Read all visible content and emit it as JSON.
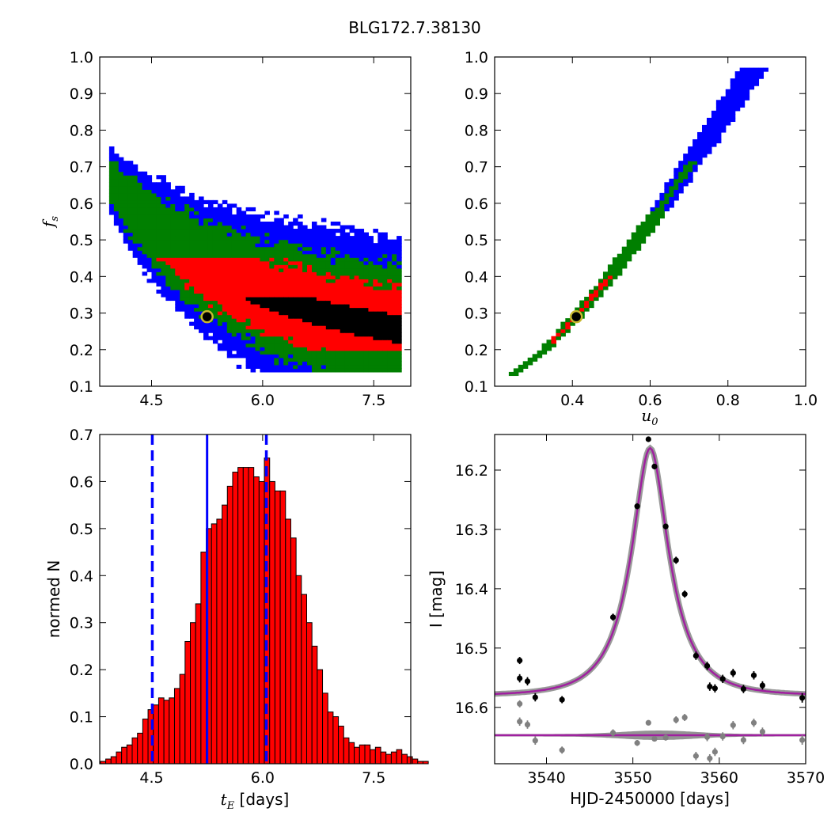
{
  "figure": {
    "title": "BLG172.7.38130"
  },
  "chart_data": [
    {
      "panel": "fs-vs-tE",
      "type": "heatmap",
      "xlabel": "",
      "ylabel_symbol": "f",
      "ylabel_sub": "s",
      "xlim": [
        3.8,
        8.0
      ],
      "ylim": [
        0.1,
        1.0
      ],
      "xticks": [
        4.5,
        6.0,
        7.5
      ],
      "yticks": [
        0.1,
        0.2,
        0.3,
        0.4,
        0.5,
        0.6,
        0.7,
        0.8,
        0.9,
        1.0
      ],
      "colors": {
        "blue": "#0000ff",
        "green": "#007f00",
        "red": "#ff0000",
        "black": "#000000"
      },
      "best_fit": {
        "x": 5.25,
        "y": 0.29
      }
    },
    {
      "panel": "fs-vs-u0",
      "type": "heatmap",
      "xlabel_symbol": "u",
      "xlabel_sub": "0",
      "xlim": [
        0.2,
        1.0
      ],
      "ylim": [
        0.1,
        1.0
      ],
      "xticks": [
        0.4,
        0.6,
        0.8,
        1.0
      ],
      "yticks": [
        0.1,
        0.2,
        0.3,
        0.4,
        0.5,
        0.6,
        0.7,
        0.8,
        0.9,
        1.0
      ],
      "best_fit": {
        "x": 0.41,
        "y": 0.29
      }
    },
    {
      "panel": "tE-histogram",
      "type": "bar",
      "xlabel_symbol": "t",
      "xlabel_sub": "E",
      "xlabel_unit": "[days]",
      "ylabel": "normed N",
      "xlim": [
        3.8,
        8.0
      ],
      "ylim": [
        0.0,
        0.7
      ],
      "xticks": [
        4.5,
        6.0,
        7.5
      ],
      "yticks": [
        0.0,
        0.1,
        0.2,
        0.3,
        0.4,
        0.5,
        0.6,
        0.7
      ],
      "bin_width": 0.0714,
      "bins_start": 3.81,
      "values": [
        0.005,
        0.01,
        0.015,
        0.025,
        0.035,
        0.04,
        0.055,
        0.065,
        0.095,
        0.115,
        0.125,
        0.14,
        0.135,
        0.14,
        0.16,
        0.19,
        0.26,
        0.3,
        0.34,
        0.45,
        0.5,
        0.51,
        0.52,
        0.55,
        0.59,
        0.62,
        0.63,
        0.63,
        0.63,
        0.61,
        0.6,
        0.65,
        0.6,
        0.58,
        0.58,
        0.52,
        0.48,
        0.4,
        0.36,
        0.3,
        0.25,
        0.2,
        0.15,
        0.11,
        0.1,
        0.08,
        0.055,
        0.045,
        0.035,
        0.04,
        0.04,
        0.03,
        0.035,
        0.025,
        0.02,
        0.025,
        0.03,
        0.02,
        0.015,
        0.01,
        0.005,
        0.005
      ],
      "bar_color": "#ff0000",
      "median": 5.25,
      "interval": [
        4.51,
        6.05
      ],
      "line_color": "#0000ff"
    },
    {
      "panel": "lightcurve",
      "type": "scatter",
      "xlabel": "HJD-2450000 [days]",
      "ylabel": "I [mag]",
      "xlim": [
        3534,
        3570
      ],
      "ylim": [
        16.695,
        16.14
      ],
      "xticks": [
        3540,
        3550,
        3560,
        3570
      ],
      "yticks": [
        16.2,
        16.3,
        16.4,
        16.5,
        16.6
      ],
      "model_color": "#a020a0",
      "band_color": "#808080",
      "model": {
        "t0": 3552.0,
        "tE": 5.25,
        "u0": 0.41,
        "I_base": 16.58
      },
      "residual_baseline": 16.647,
      "points": [
        {
          "x": 3536.9,
          "y": 16.521,
          "err": 0.006
        },
        {
          "x": 3536.9,
          "y": 16.551,
          "err": 0.007
        },
        {
          "x": 3537.8,
          "y": 16.556,
          "err": 0.007
        },
        {
          "x": 3538.7,
          "y": 16.583,
          "err": 0.007
        },
        {
          "x": 3541.8,
          "y": 16.587,
          "err": 0.006
        },
        {
          "x": 3547.7,
          "y": 16.448,
          "err": 0.006
        },
        {
          "x": 3550.5,
          "y": 16.261,
          "err": 0.005
        },
        {
          "x": 3551.8,
          "y": 16.148,
          "err": 0.004
        },
        {
          "x": 3552.5,
          "y": 16.194,
          "err": 0.004
        },
        {
          "x": 3553.8,
          "y": 16.295,
          "err": 0.005
        },
        {
          "x": 3555.0,
          "y": 16.352,
          "err": 0.006
        },
        {
          "x": 3556.0,
          "y": 16.409,
          "err": 0.006
        },
        {
          "x": 3557.3,
          "y": 16.513,
          "err": 0.007
        },
        {
          "x": 3558.6,
          "y": 16.53,
          "err": 0.007
        },
        {
          "x": 3558.9,
          "y": 16.565,
          "err": 0.007
        },
        {
          "x": 3559.5,
          "y": 16.568,
          "err": 0.007
        },
        {
          "x": 3560.4,
          "y": 16.552,
          "err": 0.007
        },
        {
          "x": 3561.6,
          "y": 16.542,
          "err": 0.007
        },
        {
          "x": 3562.8,
          "y": 16.569,
          "err": 0.007
        },
        {
          "x": 3564.0,
          "y": 16.546,
          "err": 0.007
        },
        {
          "x": 3565.0,
          "y": 16.563,
          "err": 0.007
        },
        {
          "x": 3569.6,
          "y": 16.584,
          "err": 0.008
        }
      ],
      "residuals": [
        {
          "x": 3536.9,
          "y": 16.594,
          "err": 0.006
        },
        {
          "x": 3536.9,
          "y": 16.624,
          "err": 0.007
        },
        {
          "x": 3537.8,
          "y": 16.629,
          "err": 0.007
        },
        {
          "x": 3538.7,
          "y": 16.656,
          "err": 0.007
        },
        {
          "x": 3541.8,
          "y": 16.672,
          "err": 0.006
        },
        {
          "x": 3547.7,
          "y": 16.643,
          "err": 0.006
        },
        {
          "x": 3550.5,
          "y": 16.66,
          "err": 0.005
        },
        {
          "x": 3551.8,
          "y": 16.626,
          "err": 0.004
        },
        {
          "x": 3552.5,
          "y": 16.653,
          "err": 0.004
        },
        {
          "x": 3553.8,
          "y": 16.651,
          "err": 0.005
        },
        {
          "x": 3555.0,
          "y": 16.621,
          "err": 0.006
        },
        {
          "x": 3556.0,
          "y": 16.617,
          "err": 0.006
        },
        {
          "x": 3557.3,
          "y": 16.682,
          "err": 0.007
        },
        {
          "x": 3558.6,
          "y": 16.65,
          "err": 0.007
        },
        {
          "x": 3558.9,
          "y": 16.686,
          "err": 0.007
        },
        {
          "x": 3559.5,
          "y": 16.675,
          "err": 0.007
        },
        {
          "x": 3560.4,
          "y": 16.649,
          "err": 0.007
        },
        {
          "x": 3561.6,
          "y": 16.63,
          "err": 0.007
        },
        {
          "x": 3562.8,
          "y": 16.655,
          "err": 0.007
        },
        {
          "x": 3564.0,
          "y": 16.626,
          "err": 0.007
        },
        {
          "x": 3565.0,
          "y": 16.641,
          "err": 0.007
        },
        {
          "x": 3569.6,
          "y": 16.655,
          "err": 0.008
        }
      ]
    }
  ]
}
